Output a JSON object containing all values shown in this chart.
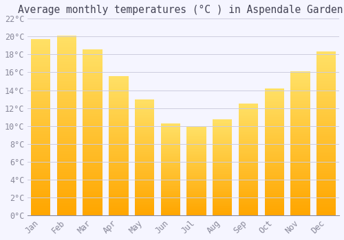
{
  "title": "Average monthly temperatures (°C ) in Aspendale Gardens",
  "months": [
    "Jan",
    "Feb",
    "Mar",
    "Apr",
    "May",
    "Jun",
    "Jul",
    "Aug",
    "Sep",
    "Oct",
    "Nov",
    "Dec"
  ],
  "values": [
    19.7,
    20.1,
    18.6,
    15.6,
    13.0,
    10.3,
    9.9,
    10.7,
    12.5,
    14.2,
    16.1,
    18.3
  ],
  "bar_color_bottom": "#FFA500",
  "bar_color_top": "#FFE066",
  "bar_edge_color": "#E8960A",
  "background_color": "#F5F5FF",
  "grid_color": "#CCCCDD",
  "ylim": [
    0,
    22
  ],
  "ytick_step": 2,
  "title_fontsize": 10.5,
  "tick_fontsize": 8.5,
  "tick_color": "#888899",
  "title_color": "#444455",
  "font_family": "monospace",
  "bar_width": 0.75
}
